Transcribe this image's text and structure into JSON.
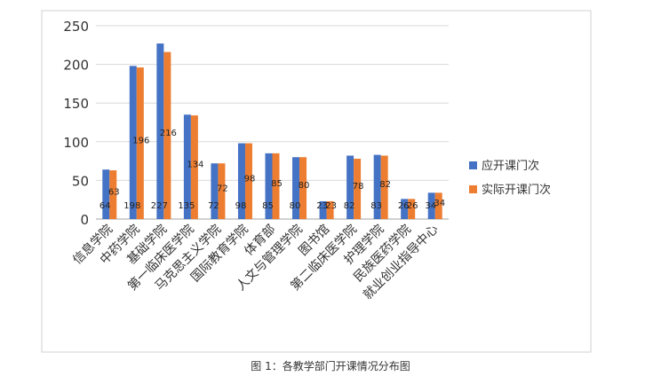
{
  "figure": {
    "caption": "图 1：各教学部门开课情况分布图"
  },
  "chart_data": {
    "type": "bar",
    "categories": [
      "信息学院",
      "中药学院",
      "基础学院",
      "第一临床医学院",
      "马克思主义学院",
      "国际教育学院",
      "体育部",
      "人文与管理学院",
      "图书馆",
      "第二临床医学院",
      "护理学院",
      "民族医药学院",
      "就业创业指导中心"
    ],
    "series": [
      {
        "name": "应开课门次",
        "values": [
          64,
          198,
          227,
          135,
          72,
          98,
          85,
          80,
          23,
          82,
          83,
          26,
          34
        ],
        "color": "#4472C4"
      },
      {
        "name": "实际开课门次",
        "values": [
          63,
          196,
          216,
          134,
          72,
          98,
          85,
          80,
          23,
          78,
          82,
          26,
          34
        ],
        "color": "#ED7D31"
      }
    ],
    "data_labels": [
      [
        "64",
        "198",
        "227",
        "135",
        "72",
        "98",
        "85",
        "80",
        "23",
        "82",
        "83",
        "26",
        "34"
      ],
      [
        "63",
        "196",
        "216",
        "134",
        "72",
        "98",
        "85",
        "80",
        "23",
        "78",
        "82",
        "26",
        "34"
      ]
    ],
    "yticks": [
      0,
      50,
      100,
      150,
      200,
      250
    ],
    "ylim": [
      0,
      250
    ],
    "grid": true,
    "legend_position": "right"
  }
}
